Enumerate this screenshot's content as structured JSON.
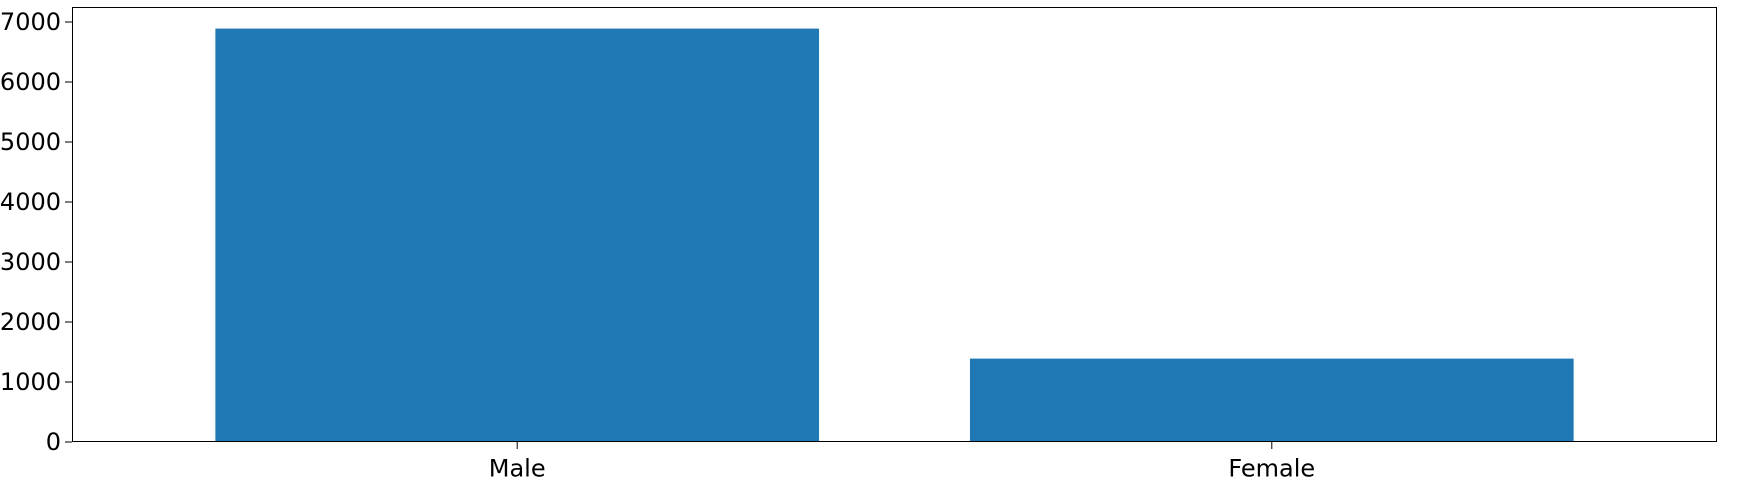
{
  "chart_data": {
    "type": "bar",
    "title": "",
    "xlabel": "",
    "ylabel": "",
    "categories": [
      "Male",
      "Female"
    ],
    "values": [
      6890,
      1390
    ],
    "ylim": [
      0,
      7250
    ],
    "yticks": [
      0,
      1000,
      2000,
      3000,
      4000,
      5000,
      6000,
      7000
    ],
    "ytick_labels": [
      "0",
      "1000",
      "2000",
      "3000",
      "4000",
      "5000",
      "6000",
      "7000"
    ],
    "bar_color": "#1f77b4",
    "grid": false,
    "legend": "none"
  }
}
